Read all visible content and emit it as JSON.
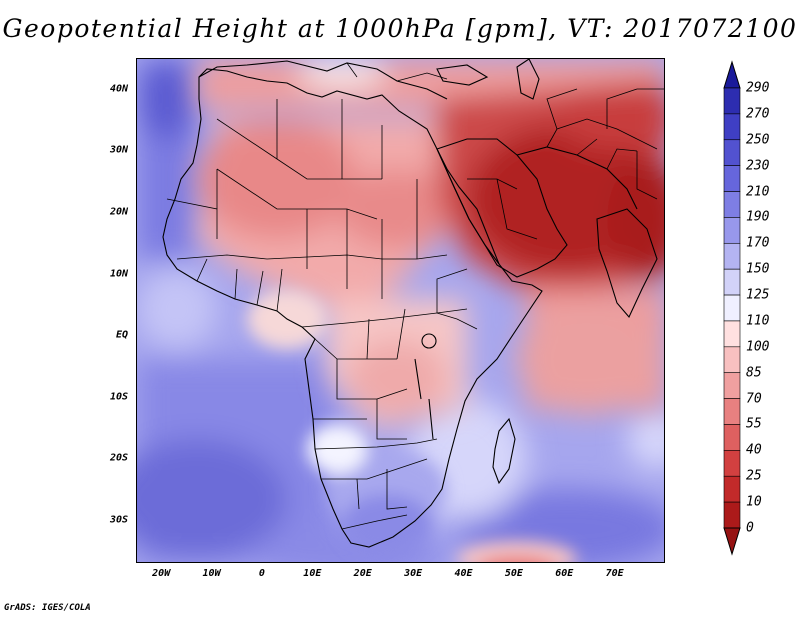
{
  "title": "Geopotential Height at 1000hPa [gpm], VT: 2017072100",
  "credit": "GrADS: IGES/COLA",
  "map": {
    "lon_range": [
      -25,
      80
    ],
    "lat_range": [
      -37,
      45
    ],
    "lat_ticks": [
      {
        "value": 40,
        "label": "40N"
      },
      {
        "value": 30,
        "label": "30N"
      },
      {
        "value": 20,
        "label": "20N"
      },
      {
        "value": 10,
        "label": "10N"
      },
      {
        "value": 0,
        "label": "EQ"
      },
      {
        "value": -10,
        "label": "10S"
      },
      {
        "value": -20,
        "label": "20S"
      },
      {
        "value": -30,
        "label": "30S"
      }
    ],
    "lon_ticks": [
      {
        "value": -20,
        "label": "20W"
      },
      {
        "value": -10,
        "label": "10W"
      },
      {
        "value": 0,
        "label": "0"
      },
      {
        "value": 10,
        "label": "10E"
      },
      {
        "value": 20,
        "label": "20E"
      },
      {
        "value": 30,
        "label": "30E"
      },
      {
        "value": 40,
        "label": "40E"
      },
      {
        "value": 50,
        "label": "50E"
      },
      {
        "value": 60,
        "label": "60E"
      },
      {
        "value": 70,
        "label": "70E"
      }
    ]
  },
  "colorbar": {
    "levels": [
      "290",
      "270",
      "250",
      "230",
      "210",
      "190",
      "170",
      "150",
      "125",
      "110",
      "100",
      "85",
      "70",
      "55",
      "40",
      "25",
      "10",
      "0"
    ],
    "colors": [
      "#1a1a9a",
      "#2d2db0",
      "#3f3fc4",
      "#5252d0",
      "#6666dc",
      "#7e7ee4",
      "#9898ec",
      "#b4b4f2",
      "#d2d2f8",
      "#f0f0ff",
      "#ffe0e0",
      "#f8c0c0",
      "#f0a0a0",
      "#e88080",
      "#de6060",
      "#d24040",
      "#c22a2a",
      "#ac1a1a",
      "#961212"
    ]
  },
  "colors": {
    "ocean_blue": "#9a9aea",
    "deep_blue": "#6a6ad8",
    "land_pink": "#ee9a9a",
    "deep_red": "#a81c1c"
  }
}
